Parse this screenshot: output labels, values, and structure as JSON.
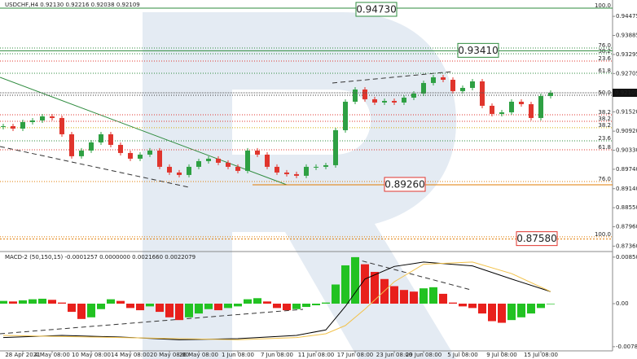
{
  "chart_data": [
    {
      "type": "candlestick",
      "title": "USDCHF,H4  0.92130 0.92216 0.92038 0.92109",
      "x": [
        null,
        null,
        "28 Apr 2021",
        null,
        null,
        "4 May 08:00",
        null,
        null,
        null,
        "10 May 08:00",
        null,
        null,
        null,
        "14 May 08:00",
        null,
        null,
        null,
        "20 May 08:00",
        null,
        null,
        "26 May 08:00",
        null,
        null,
        null,
        "1 Jun 08:00",
        null,
        null,
        null,
        "7 Jun 08:00",
        null,
        null,
        null,
        "11 Jun 08:00",
        null,
        null,
        null,
        "17 Jun 08:00",
        null,
        null,
        null,
        "23 Jun 08:00",
        null,
        null,
        "29 Jun 08:00",
        null,
        null,
        null,
        "5 Jul 08:00",
        null,
        null,
        null,
        "9 Jul 08:00",
        null,
        null,
        null,
        "15 Jul 08:00",
        null
      ],
      "close": [
        0.91076,
        0.91,
        0.91202,
        0.91252,
        0.91378,
        0.91328,
        0.90824,
        0.90144,
        0.9032,
        0.90572,
        0.90824,
        0.90496,
        0.90244,
        0.90068,
        0.90194,
        0.9032,
        0.89816,
        0.8964,
        0.89564,
        0.89816,
        0.89992,
        0.90068,
        0.89942,
        0.89816,
        0.8969,
        0.9032,
        0.90194,
        0.89816,
        0.8964,
        0.89589,
        0.89539,
        0.89816,
        0.89816,
        0.89866,
        0.9095,
        0.91832,
        0.9221,
        0.91908,
        0.91807,
        0.91857,
        0.91807,
        0.91958,
        0.92084,
        0.92412,
        0.92588,
        0.92512,
        0.9216,
        0.9226,
        0.92462,
        0.91706,
        0.91454,
        0.91504,
        0.91832,
        0.91756,
        0.91328,
        0.92008,
        0.92109
      ],
      "up_color": "#2ea043",
      "down_color": "#e0352d",
      "ylim": [
        0.87218,
        0.94906
      ],
      "yticks": [
        {
          "value": 0.94475,
          "label": "0.94475"
        },
        {
          "value": 0.93885,
          "label": "0.93885"
        },
        {
          "value": 0.93295,
          "label": "0.93295"
        },
        {
          "value": 0.92705,
          "label": "0.92705"
        },
        {
          "value": 0.9152,
          "label": "0.91520"
        },
        {
          "value": 0.9092,
          "label": "0.90920"
        },
        {
          "value": 0.9033,
          "label": "0.90330"
        },
        {
          "value": 0.8974,
          "label": "0.89740"
        },
        {
          "value": 0.8914,
          "label": "0.89140"
        },
        {
          "value": 0.8855,
          "label": "0.88550"
        },
        {
          "value": 0.8796,
          "label": "0.87960"
        },
        {
          "value": 0.8736,
          "label": "0.87360"
        }
      ],
      "last_price": 0.92109,
      "levels": [
        {
          "value": 0.9473,
          "label": "100.0",
          "color": "#2e8b3e"
        },
        {
          "value": 0.93495,
          "label": "76.0",
          "color": "#2e8b3e"
        },
        {
          "value": 0.93319,
          "label": "38.2",
          "color": "#2e8b3e"
        },
        {
          "value": 0.93092,
          "label": "23.6",
          "color": "#e0352d"
        },
        {
          "value": 0.92714,
          "label": "61.8",
          "color": "#2e8b3e"
        },
        {
          "value": 0.92034,
          "label": "50.0",
          "color": "#333333"
        },
        {
          "value": 0.91429,
          "label": "38.2",
          "color": "#e0352d"
        },
        {
          "value": 0.91227,
          "label": "38.2",
          "color": "#e0352d"
        },
        {
          "value": 0.91026,
          "label": "38.2",
          "color": "#d4b106"
        },
        {
          "value": 0.90622,
          "label": "23.6",
          "color": "#2e8b3e"
        },
        {
          "value": 0.90345,
          "label": "61.8",
          "color": "#e0352d"
        },
        {
          "value": 0.89362,
          "label": "76.0",
          "color": "#e07b00"
        },
        {
          "value": 0.87649,
          "label": "100.0",
          "color": "#e07b00"
        }
      ],
      "price_labels": [
        {
          "value": 0.9473,
          "label": "0.94730",
          "color": "#2e8b3e"
        },
        {
          "value": 0.9341,
          "label": "0.93410",
          "color": "#2e8b3e"
        },
        {
          "value": 0.8926,
          "label": "0.89260",
          "color": "#e0352d"
        },
        {
          "value": 0.8758,
          "label": "0.87580",
          "color": "#e0352d"
        }
      ]
    },
    {
      "type": "macd",
      "title": "MACD-2 (50,150,15) -0.0001257 0.0000000 0.0021660 0.0022079",
      "histogram": [
        0.0005,
        0.0004,
        0.0006,
        0.0008,
        0.0009,
        0.0007,
        0.0002,
        -0.0015,
        -0.0028,
        -0.0025,
        -0.001,
        0.0008,
        0.0005,
        -0.0008,
        -0.0012,
        -0.0005,
        -0.0015,
        -0.0025,
        -0.003,
        -0.0025,
        -0.0018,
        -0.001,
        -0.0012,
        -0.0008,
        -0.0005,
        0.0008,
        0.001,
        0.0004,
        -0.0008,
        -0.0012,
        -0.001,
        -0.0006,
        -0.0003,
        0.0002,
        0.0035,
        0.007,
        0.0085,
        0.0072,
        0.0058,
        0.0045,
        0.0032,
        0.0025,
        0.0022,
        0.0028,
        0.003,
        0.0018,
        0.0002,
        -0.0005,
        -0.0008,
        -0.0018,
        -0.0032,
        -0.0035,
        -0.003,
        -0.0025,
        -0.0018,
        -0.0008,
        -0.0001
      ],
      "up_color": "#22c222",
      "down_color": "#e8201c",
      "lines": [
        {
          "color": "#000000",
          "x": [
            0,
            6,
            12,
            18,
            24,
            30,
            33,
            35,
            37,
            40,
            43,
            48,
            52,
            56
          ],
          "values": [
            -0.0062,
            -0.0058,
            -0.0061,
            -0.0066,
            -0.0064,
            -0.0058,
            -0.0048,
            -0.0005,
            0.0045,
            0.0068,
            0.0076,
            0.0069,
            0.0045,
            0.0022
          ]
        },
        {
          "color": "#f2c24a",
          "x": [
            0,
            6,
            12,
            18,
            24,
            30,
            33,
            35,
            37,
            40,
            43,
            48,
            52,
            56
          ],
          "values": [
            -0.0058,
            -0.006,
            -0.0062,
            -0.0064,
            -0.0066,
            -0.0062,
            -0.0055,
            -0.004,
            -0.001,
            0.004,
            0.0072,
            0.0076,
            0.0055,
            0.0022
          ]
        }
      ],
      "ylim": [
        -0.00848,
        0.009077
      ],
      "yticks": [
        0.0085055,
        {
          "value": 0,
          "label": "0.00"
        },
        -0.0078661
      ]
    }
  ]
}
